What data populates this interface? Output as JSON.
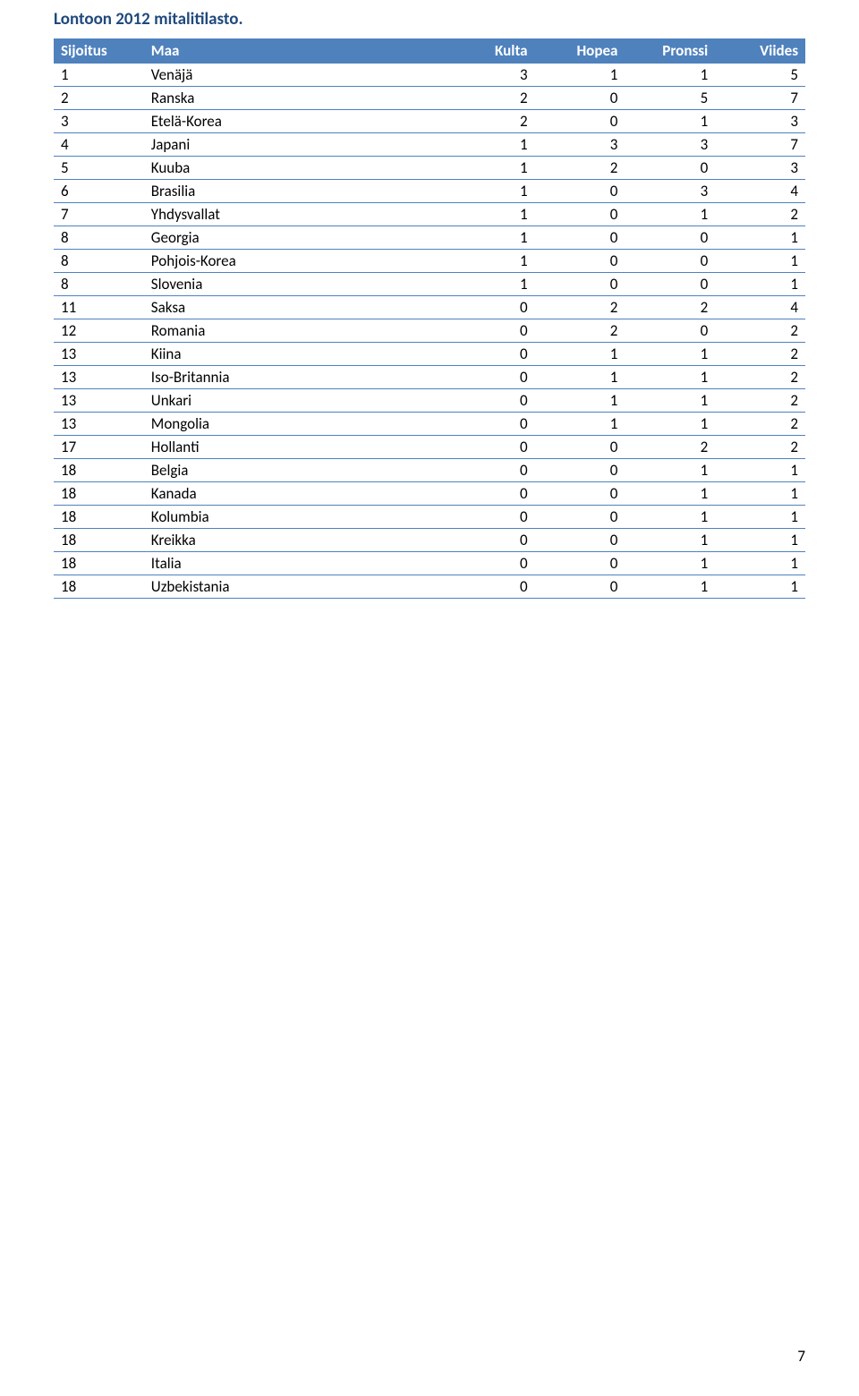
{
  "title": "Lontoon 2012 mitalitilasto.",
  "table": {
    "columns": [
      "Sijoitus",
      "Maa",
      "Kulta",
      "Hopea",
      "Pronssi",
      "Viides"
    ],
    "header_bg": "#4f81bd",
    "header_color": "#ffffff",
    "border_color": "#4f81bd",
    "rows": [
      {
        "rank": "1",
        "country": "Venäjä",
        "k": "3",
        "h": "1",
        "p": "1",
        "v": "5"
      },
      {
        "rank": "2",
        "country": "Ranska",
        "k": "2",
        "h": "0",
        "p": "5",
        "v": "7"
      },
      {
        "rank": "3",
        "country": "Etelä-Korea",
        "k": "2",
        "h": "0",
        "p": "1",
        "v": "3"
      },
      {
        "rank": "4",
        "country": "Japani",
        "k": "1",
        "h": "3",
        "p": "3",
        "v": "7"
      },
      {
        "rank": "5",
        "country": "Kuuba",
        "k": "1",
        "h": "2",
        "p": "0",
        "v": "3"
      },
      {
        "rank": "6",
        "country": "Brasilia",
        "k": "1",
        "h": "0",
        "p": "3",
        "v": "4"
      },
      {
        "rank": "7",
        "country": "Yhdysvallat",
        "k": "1",
        "h": "0",
        "p": "1",
        "v": "2"
      },
      {
        "rank": "8",
        "country": "Georgia",
        "k": "1",
        "h": "0",
        "p": "0",
        "v": "1"
      },
      {
        "rank": "8",
        "country": "Pohjois-Korea",
        "k": "1",
        "h": "0",
        "p": "0",
        "v": "1"
      },
      {
        "rank": "8",
        "country": "Slovenia",
        "k": "1",
        "h": "0",
        "p": "0",
        "v": "1"
      },
      {
        "rank": "11",
        "country": "Saksa",
        "k": "0",
        "h": "2",
        "p": "2",
        "v": "4"
      },
      {
        "rank": "12",
        "country": "Romania",
        "k": "0",
        "h": "2",
        "p": "0",
        "v": "2"
      },
      {
        "rank": "13",
        "country": "Kiina",
        "k": "0",
        "h": "1",
        "p": "1",
        "v": "2"
      },
      {
        "rank": "13",
        "country": "Iso-Britannia",
        "k": "0",
        "h": "1",
        "p": "1",
        "v": "2"
      },
      {
        "rank": "13",
        "country": "Unkari",
        "k": "0",
        "h": "1",
        "p": "1",
        "v": "2"
      },
      {
        "rank": "13",
        "country": "Mongolia",
        "k": "0",
        "h": "1",
        "p": "1",
        "v": "2"
      },
      {
        "rank": "17",
        "country": "Hollanti",
        "k": "0",
        "h": "0",
        "p": "2",
        "v": "2"
      },
      {
        "rank": "18",
        "country": "Belgia",
        "k": "0",
        "h": "0",
        "p": "1",
        "v": "1"
      },
      {
        "rank": "18",
        "country": "Kanada",
        "k": "0",
        "h": "0",
        "p": "1",
        "v": "1"
      },
      {
        "rank": "18",
        "country": "Kolumbia",
        "k": "0",
        "h": "0",
        "p": "1",
        "v": "1"
      },
      {
        "rank": "18",
        "country": "Kreikka",
        "k": "0",
        "h": "0",
        "p": "1",
        "v": "1"
      },
      {
        "rank": "18",
        "country": "Italia",
        "k": "0",
        "h": "0",
        "p": "1",
        "v": "1"
      },
      {
        "rank": "18",
        "country": "Uzbekistania",
        "k": "0",
        "h": "0",
        "p": "1",
        "v": "1"
      }
    ]
  },
  "page_number": "7",
  "title_color": "#1f497d"
}
